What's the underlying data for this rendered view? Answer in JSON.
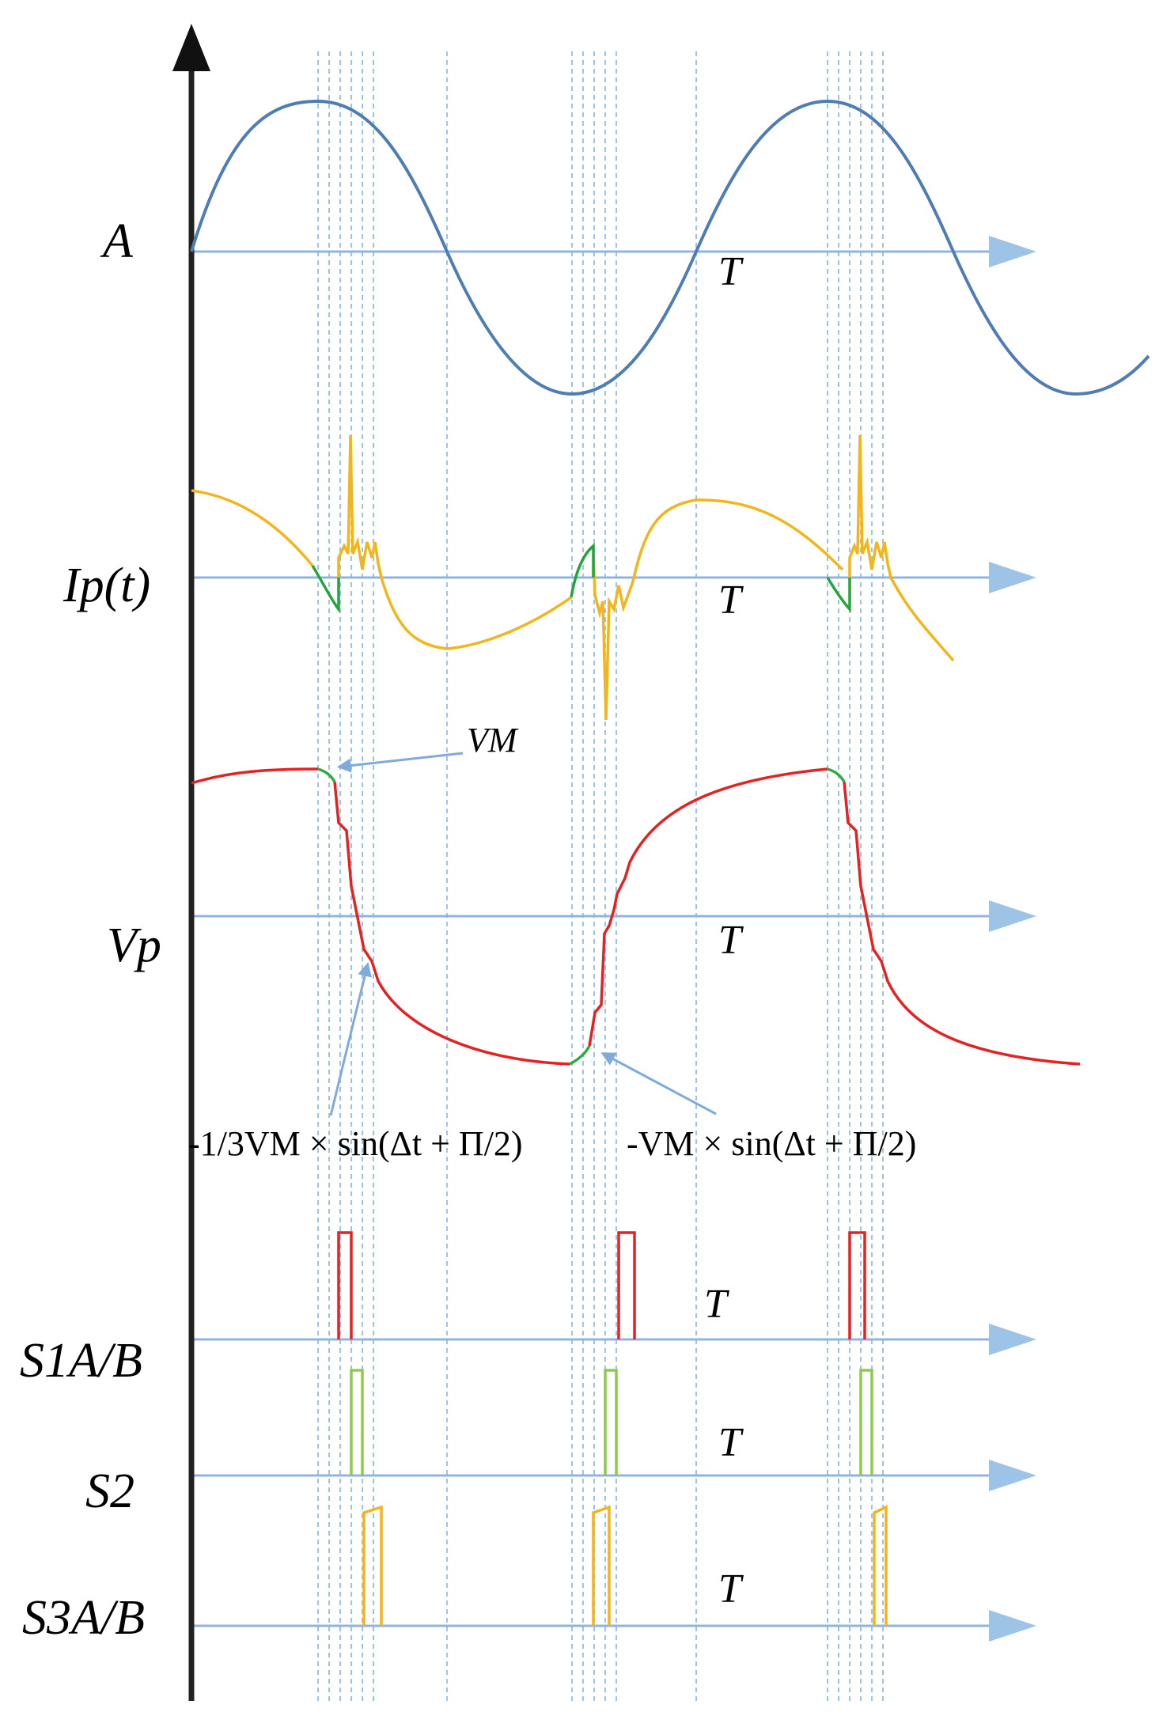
{
  "diagram": {
    "signals": [
      {
        "id": "A",
        "label": "A",
        "axis_label": "T"
      },
      {
        "id": "Ip",
        "label": "Ip(t)",
        "axis_label": "T"
      },
      {
        "id": "Vp",
        "label": "Vp",
        "axis_label": "T"
      },
      {
        "id": "S1",
        "label": "S1A/B",
        "axis_label": "T"
      },
      {
        "id": "S2",
        "label": "S2",
        "axis_label": "T"
      },
      {
        "id": "S3",
        "label": "S3A/B",
        "axis_label": "T"
      }
    ],
    "annotations": {
      "vm": "VM",
      "third": "-1/3VM × sin(Δt + Π/2)",
      "full": "-VM × sin(Δt + Π/2)"
    },
    "colors": {
      "axis": "#8FB4DD",
      "gridline": "#9DC3E6",
      "A_wave": "#4E7DB4",
      "Ip_wave": "#F2B51B",
      "Ip_transition": "#22A53A",
      "Vp_wave": "#E52222",
      "Vp_transition": "#2FAA45",
      "S1_pulse": "#E52222",
      "S2_pulse": "#8CCB4A",
      "S3_pulse": "#F5B31A",
      "vertical_axis": "#222222"
    }
  }
}
